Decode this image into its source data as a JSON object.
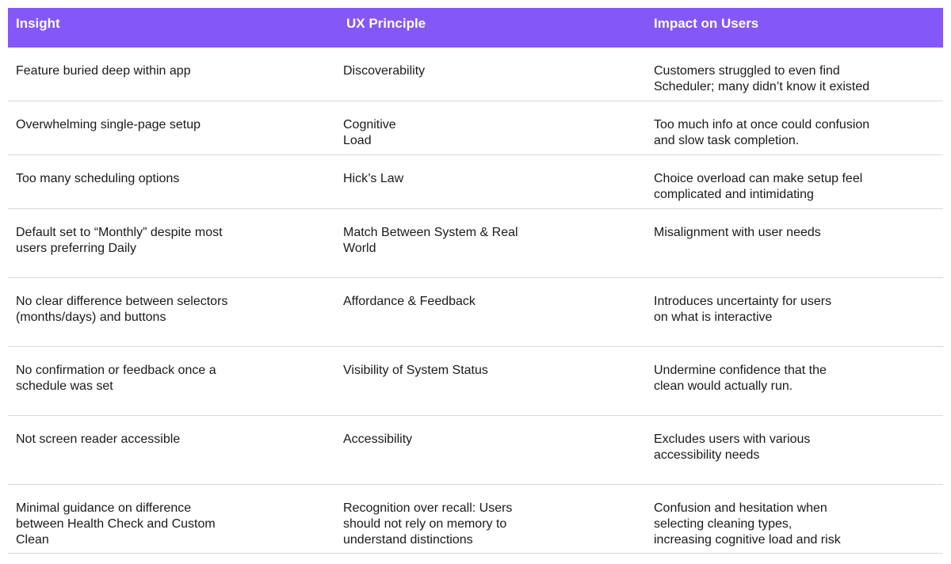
{
  "table": {
    "columns": [
      "Insight",
      "UX Principle",
      "Impact on Users"
    ],
    "rows": [
      [
        "Feature buried deep within app",
        "Discoverability",
        "Customers struggled to even find\nScheduler;  many didn’t know it existed"
      ],
      [
        "Overwhelming single-page setup",
        "Cognitive\nLoad",
        "Too much info at once could confusion\nand slow task completion."
      ],
      [
        "Too many scheduling options",
        "Hick’s Law",
        "Choice overload can make setup feel\ncomplicated and intimidating"
      ],
      [
        "Default set to “Monthly” despite most\nusers preferring Daily",
        "Match Between System & Real\nWorld",
        "Misalignment with user needs"
      ],
      [
        "No clear difference between selectors\n(months/days) and buttons",
        "Affordance & Feedback",
        "Introduces uncertainty for users\non what is interactive"
      ],
      [
        "No confirmation or feedback once a\nschedule was set",
        "Visibility of System Status",
        "Undermine confidence that the\nclean would actually run."
      ],
      [
        "Not screen reader accessible",
        "Accessibility",
        "Excludes users with various\naccessibility needs"
      ],
      [
        "Minimal guidance on difference\nbetween Health Check and Custom\nClean",
        "Recognition over recall: Users\nshould not rely on memory to\nunderstand distinctions",
        "Confusion and hesitation when\nselecting cleaning types,\nincreasing cognitive load and risk"
      ]
    ]
  }
}
